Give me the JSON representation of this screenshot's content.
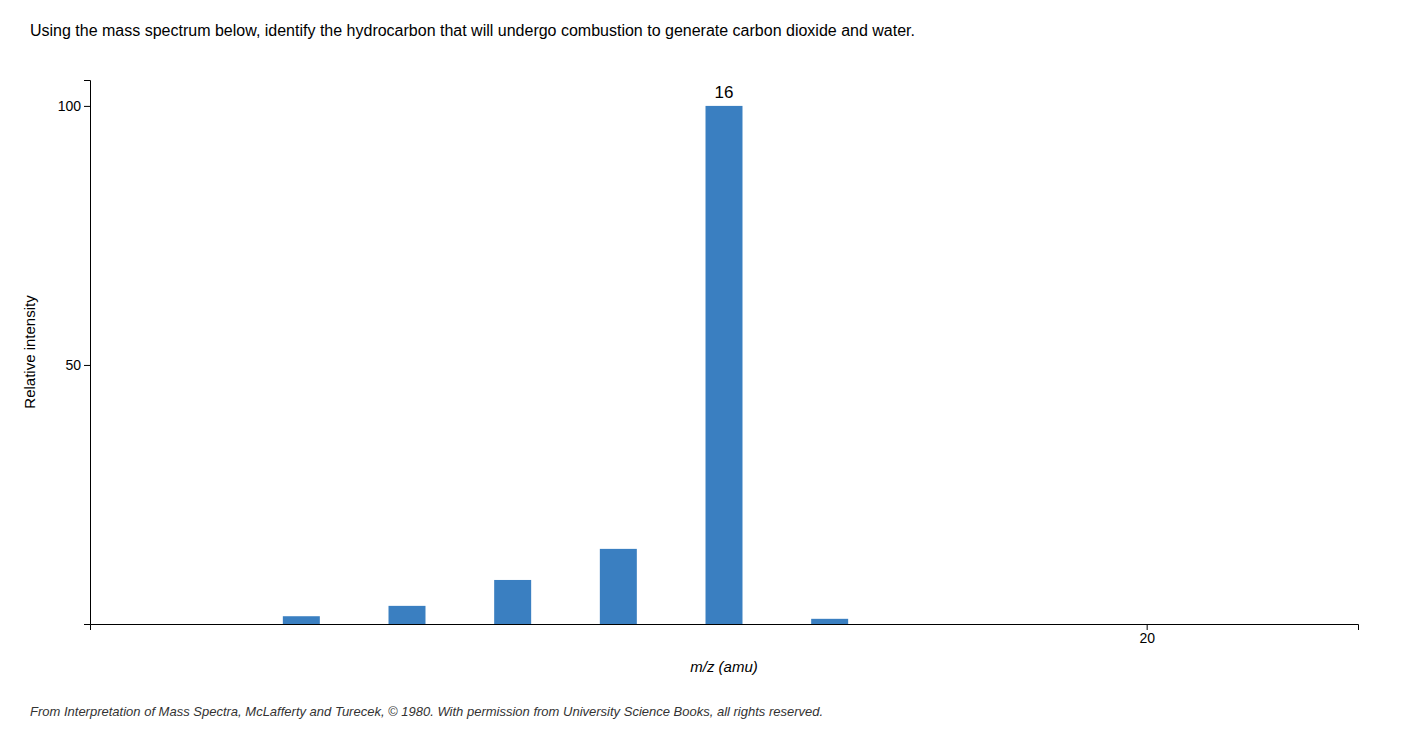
{
  "chart_data": {
    "type": "bar",
    "title": "Using the mass spectrum below, identify the hydrocarbon that will undergo combustion to generate carbon dioxide and water.",
    "caption": "From Interpretation of Mass Spectra, McLafferty and Turecek, © 1980. With permission from University Science Books, all rights reserved.",
    "x_label": "m/z (amu)",
    "y_label": "Relative intensity",
    "x": [
      12,
      13,
      14,
      15,
      16,
      17
    ],
    "values": [
      1.5,
      3.5,
      8.5,
      14.5,
      100.0,
      1.0
    ],
    "color": "#3a7fc1",
    "xlim": [
      10,
      22
    ],
    "xticks": [
      20
    ],
    "ylim": [
      0,
      105
    ],
    "yticks": [
      50,
      100
    ],
    "annotations": [
      {
        "text": "16",
        "x": 16,
        "y": 101
      }
    ]
  }
}
